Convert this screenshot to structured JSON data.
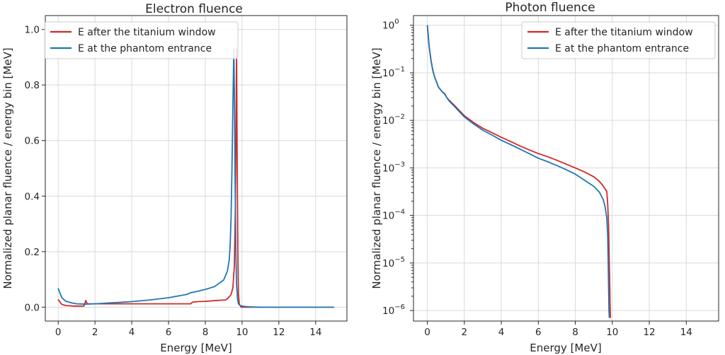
{
  "colors": {
    "red": "#d62728",
    "blue": "#1f77b4"
  },
  "chart_data": [
    {
      "type": "line",
      "title": "Electron fluence",
      "xlabel": "Energy [MeV]",
      "ylabel": "Normalized planar fluence / energy bin [MeV]",
      "xlim": [
        -0.7,
        15.7
      ],
      "ylim": [
        -0.05,
        1.05
      ],
      "yscale": "linear",
      "xticks": [
        0,
        2,
        4,
        6,
        8,
        10,
        12,
        14
      ],
      "xtick_labels": [
        "0",
        "2",
        "4",
        "6",
        "8",
        "10",
        "12",
        "14"
      ],
      "yticks": [
        0.0,
        0.2,
        0.4,
        0.6,
        0.8,
        1.0
      ],
      "ytick_labels": [
        "0.0",
        "0.2",
        "0.4",
        "0.6",
        "0.8",
        "1.0"
      ],
      "grid": true,
      "legend_position": "upper-left",
      "series": [
        {
          "name": "E after the titanium window",
          "color": "#d62728",
          "points": [
            [
              0,
              0.028
            ],
            [
              0.1,
              0.018
            ],
            [
              0.2,
              0.01
            ],
            [
              0.4,
              0.006
            ],
            [
              0.8,
              0.004
            ],
            [
              1.4,
              0.004
            ],
            [
              1.45,
              0.014
            ],
            [
              1.5,
              0.024
            ],
            [
              1.55,
              0.016
            ],
            [
              1.6,
              0.012
            ],
            [
              2,
              0.012
            ],
            [
              4,
              0.012
            ],
            [
              6,
              0.012
            ],
            [
              7.2,
              0.012
            ],
            [
              7.3,
              0.018
            ],
            [
              7.6,
              0.02
            ],
            [
              8,
              0.021
            ],
            [
              8.6,
              0.024
            ],
            [
              9.1,
              0.026
            ],
            [
              9.2,
              0.03
            ],
            [
              9.4,
              0.045
            ],
            [
              9.5,
              0.07
            ],
            [
              9.58,
              0.15
            ],
            [
              9.63,
              0.35
            ],
            [
              9.67,
              0.65
            ],
            [
              9.7,
              0.93
            ],
            [
              9.73,
              0.55
            ],
            [
              9.77,
              0.2
            ],
            [
              9.8,
              0.05
            ],
            [
              9.85,
              0.01
            ],
            [
              9.95,
              0.0
            ],
            [
              15,
              0.0
            ]
          ]
        },
        {
          "name": "E at the phantom entrance",
          "color": "#1f77b4",
          "points": [
            [
              0,
              0.068
            ],
            [
              0.1,
              0.05
            ],
            [
              0.2,
              0.034
            ],
            [
              0.4,
              0.022
            ],
            [
              0.7,
              0.016
            ],
            [
              1.0,
              0.012
            ],
            [
              1.5,
              0.011
            ],
            [
              2,
              0.012
            ],
            [
              3,
              0.016
            ],
            [
              4,
              0.02
            ],
            [
              5,
              0.026
            ],
            [
              6,
              0.034
            ],
            [
              7,
              0.046
            ],
            [
              7.2,
              0.052
            ],
            [
              7.5,
              0.056
            ],
            [
              8,
              0.064
            ],
            [
              8.5,
              0.074
            ],
            [
              9,
              0.098
            ],
            [
              9.2,
              0.13
            ],
            [
              9.3,
              0.17
            ],
            [
              9.35,
              0.22
            ],
            [
              9.4,
              0.32
            ],
            [
              9.45,
              0.5
            ],
            [
              9.5,
              0.73
            ],
            [
              9.55,
              0.93
            ],
            [
              9.58,
              0.78
            ],
            [
              9.62,
              0.45
            ],
            [
              9.66,
              0.2
            ],
            [
              9.7,
              0.08
            ],
            [
              9.75,
              0.03
            ],
            [
              9.8,
              0.012
            ],
            [
              9.9,
              0.006
            ],
            [
              10,
              0.004
            ],
            [
              10.2,
              0.002
            ],
            [
              10.5,
              0.001
            ],
            [
              11,
              0.0
            ],
            [
              15,
              0.0
            ]
          ]
        }
      ]
    },
    {
      "type": "line",
      "title": "Photon fluence",
      "xlabel": "Energy [MeV]",
      "ylabel": "Normalized planar fluence / energy bin [MeV]",
      "xlim": [
        -0.75,
        15.75
      ],
      "ylim": [
        6e-07,
        1.6
      ],
      "yscale": "log",
      "xticks": [
        0,
        2,
        4,
        6,
        8,
        10,
        12,
        14
      ],
      "xtick_labels": [
        "0",
        "2",
        "4",
        "6",
        "8",
        "10",
        "12",
        "14"
      ],
      "yticks": [
        1e-06,
        1e-05,
        0.0001,
        0.001,
        0.01,
        0.1,
        1
      ],
      "ytick_labels": [
        "10",
        "10",
        "10",
        "10",
        "10",
        "10",
        "10"
      ],
      "ytick_exponents": [
        "−6",
        "−5",
        "−4",
        "−3",
        "−2",
        "−1",
        "0"
      ],
      "grid": true,
      "legend_position": "upper-right",
      "series": [
        {
          "name": "E after the titanium window",
          "color": "#d62728",
          "points": [
            [
              0,
              1.0
            ],
            [
              0.05,
              0.6
            ],
            [
              0.1,
              0.35
            ],
            [
              0.2,
              0.18
            ],
            [
              0.3,
              0.11
            ],
            [
              0.4,
              0.08
            ],
            [
              0.6,
              0.05
            ],
            [
              0.8,
              0.04
            ],
            [
              0.95,
              0.036
            ],
            [
              1.0,
              0.033
            ],
            [
              1.05,
              0.03
            ],
            [
              1.2,
              0.026
            ],
            [
              1.5,
              0.02
            ],
            [
              2,
              0.0125
            ],
            [
              2.5,
              0.009
            ],
            [
              3,
              0.0068
            ],
            [
              3.5,
              0.0055
            ],
            [
              4,
              0.0044
            ],
            [
              4.5,
              0.0036
            ],
            [
              5,
              0.0029
            ],
            [
              5.5,
              0.0024
            ],
            [
              6,
              0.002
            ],
            [
              6.5,
              0.00172
            ],
            [
              7,
              0.00145
            ],
            [
              7.5,
              0.0012
            ],
            [
              8,
              0.001
            ],
            [
              8.5,
              0.00082
            ],
            [
              9,
              0.00065
            ],
            [
              9.3,
              0.00052
            ],
            [
              9.5,
              0.00042
            ],
            [
              9.7,
              0.00032
            ],
            [
              9.75,
              0.00018
            ],
            [
              9.8,
              6e-05
            ],
            [
              9.83,
              1.5e-05
            ],
            [
              9.86,
              4e-06
            ],
            [
              9.88,
              1.2e-06
            ],
            [
              9.9,
              7e-07
            ]
          ]
        },
        {
          "name": "E at the phantom entrance",
          "color": "#1f77b4",
          "points": [
            [
              0,
              1.0
            ],
            [
              0.05,
              0.6
            ],
            [
              0.1,
              0.35
            ],
            [
              0.2,
              0.18
            ],
            [
              0.3,
              0.11
            ],
            [
              0.4,
              0.08
            ],
            [
              0.6,
              0.05
            ],
            [
              0.8,
              0.04
            ],
            [
              0.95,
              0.035
            ],
            [
              1.05,
              0.03
            ],
            [
              1.2,
              0.025
            ],
            [
              1.5,
              0.019
            ],
            [
              2,
              0.0118
            ],
            [
              2.5,
              0.0084
            ],
            [
              3,
              0.0062
            ],
            [
              3.5,
              0.0049
            ],
            [
              4,
              0.0038
            ],
            [
              4.5,
              0.0031
            ],
            [
              5,
              0.0025
            ],
            [
              5.5,
              0.002
            ],
            [
              6,
              0.0016
            ],
            [
              6.5,
              0.00135
            ],
            [
              7,
              0.00112
            ],
            [
              7.5,
              0.00092
            ],
            [
              8,
              0.00074
            ],
            [
              8.5,
              0.00055
            ],
            [
              9,
              0.00041
            ],
            [
              9.3,
              0.00031
            ],
            [
              9.5,
              0.00022
            ],
            [
              9.6,
              0.00016
            ],
            [
              9.7,
              9e-05
            ],
            [
              9.75,
              4e-05
            ],
            [
              9.78,
              1e-05
            ],
            [
              9.8,
              3e-06
            ],
            [
              9.82,
              1e-06
            ],
            [
              9.84,
              7e-07
            ]
          ]
        }
      ]
    }
  ]
}
